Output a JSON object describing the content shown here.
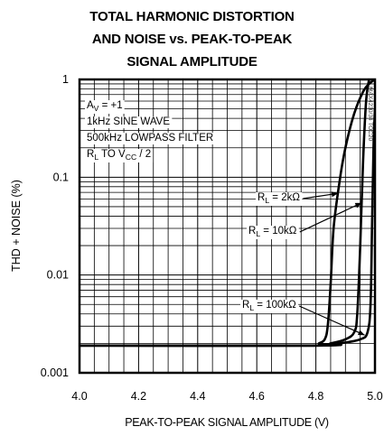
{
  "title_lines": [
    "TOTAL HARMONIC DISTORTION",
    "AND NOISE vs. PEAK-TO-PEAK",
    "SIGNAL AMPLITUDE"
  ],
  "part_id": "MAX4230/34 TOC20",
  "chart_data": {
    "type": "line",
    "title": "TOTAL HARMONIC DISTORTION AND NOISE vs. PEAK-TO-PEAK SIGNAL AMPLITUDE",
    "xlabel": "PEAK-TO-PEAK SIGNAL AMPLITUDE (V)",
    "ylabel": "THD + NOISE (%)",
    "xlim": [
      4.0,
      5.0
    ],
    "ylim": [
      0.001,
      1
    ],
    "yscale": "log",
    "grid": true,
    "x_ticks": [
      "4.0",
      "4.2",
      "4.4",
      "4.6",
      "4.8",
      "5.0"
    ],
    "x_tick_values": [
      4.0,
      4.2,
      4.4,
      4.6,
      4.8,
      5.0
    ],
    "y_ticks": [
      "1",
      "0.1",
      "0.01",
      "0.001"
    ],
    "y_tick_values": [
      1,
      0.1,
      0.01,
      0.001
    ],
    "conditions": [
      {
        "main": "A",
        "sub": "V",
        "rest": " = +1"
      },
      {
        "main": "1kHz SINE WAVE",
        "sub": "",
        "rest": ""
      },
      {
        "main": "500kHz LOWPASS FILTER",
        "sub": "",
        "rest": ""
      },
      {
        "main": "R",
        "sub": "L",
        "rest": " TO V",
        "sub2": "CC",
        "rest2": " / 2"
      }
    ],
    "series": [
      {
        "name": "RL = 2kΩ",
        "label": {
          "main": "R",
          "sub": "L",
          "rest": " = 2kΩ"
        },
        "x": [
          4.0,
          4.79,
          4.81,
          4.83,
          4.84,
          4.85,
          4.86,
          4.88,
          4.9,
          4.93,
          4.96,
          4.98,
          5.0
        ],
        "y": [
          0.0019,
          0.0019,
          0.002,
          0.0022,
          0.003,
          0.008,
          0.03,
          0.09,
          0.2,
          0.45,
          0.75,
          0.9,
          1.0
        ]
      },
      {
        "name": "RL = 10kΩ",
        "label": {
          "main": "R",
          "sub": "L",
          "rest": " = 10kΩ"
        },
        "x": [
          4.0,
          4.8,
          4.85,
          4.9,
          4.93,
          4.94,
          4.95,
          4.96,
          4.97,
          4.98
        ],
        "y": [
          0.0019,
          0.0019,
          0.002,
          0.0022,
          0.0026,
          0.004,
          0.02,
          0.15,
          0.6,
          1.0
        ]
      },
      {
        "name": "RL = 100kΩ",
        "label": {
          "main": "R",
          "sub": "L",
          "rest": " = 100kΩ"
        },
        "x": [
          4.0,
          4.8,
          4.88,
          4.95,
          4.975,
          4.985,
          4.99,
          4.995,
          5.0
        ],
        "y": [
          0.0019,
          0.0019,
          0.002,
          0.0022,
          0.0026,
          0.005,
          0.03,
          0.2,
          0.5
        ]
      }
    ]
  }
}
